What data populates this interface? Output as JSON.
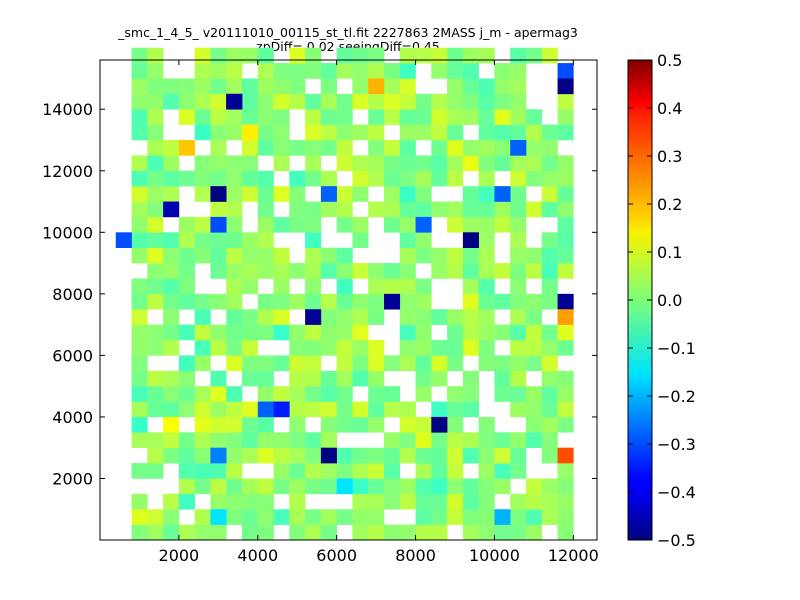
{
  "chart_data": {
    "type": "heatmap",
    "title": "_smc_1_4_5_ v20111010_00115_st_tl.fit 2227863 2MASS j_m - apermag3",
    "subtitle": "zpDiff= 0.02 seeingDiff=0.45",
    "xlabel": "",
    "ylabel": "",
    "xlim": [
      0,
      12600
    ],
    "ylim": [
      0,
      15600
    ],
    "x_ticks": [
      "2000",
      "4000",
      "6000",
      "8000",
      "10000",
      "12000"
    ],
    "y_ticks": [
      "2000",
      "4000",
      "6000",
      "8000",
      "10000",
      "12000",
      "14000"
    ],
    "colorbar": {
      "colormap": "jet",
      "min": -0.5,
      "max": 0.5,
      "ticks": [
        "0.5",
        "0.4",
        "0.3",
        "0.2",
        "0.1",
        "0.0",
        "−0.1",
        "−0.2",
        "−0.3",
        "−0.4",
        "−0.5"
      ]
    },
    "grid": false,
    "cell_width": 400,
    "cell_height": 500,
    "value_fill_density": 0.8,
    "value_seed": 2227863,
    "outlier_cells": [
      {
        "x": 400,
        "y": 9500,
        "value": -0.3
      },
      {
        "x": 3200,
        "y": 14000,
        "value": -0.48
      },
      {
        "x": 6800,
        "y": 14500,
        "value": 0.2
      },
      {
        "x": 11600,
        "y": 15000,
        "value": -0.3
      },
      {
        "x": 11600,
        "y": 14500,
        "value": -0.5
      },
      {
        "x": 10400,
        "y": 12500,
        "value": -0.28
      },
      {
        "x": 2000,
        "y": 12500,
        "value": 0.18
      },
      {
        "x": 2800,
        "y": 11000,
        "value": -0.5
      },
      {
        "x": 1600,
        "y": 10500,
        "value": -0.45
      },
      {
        "x": 2800,
        "y": 10000,
        "value": -0.3
      },
      {
        "x": 5600,
        "y": 11000,
        "value": -0.28
      },
      {
        "x": 10000,
        "y": 11000,
        "value": -0.28
      },
      {
        "x": 8000,
        "y": 10000,
        "value": -0.28
      },
      {
        "x": 9200,
        "y": 9500,
        "value": -0.5
      },
      {
        "x": 3200,
        "y": 14000,
        "value": -0.48
      },
      {
        "x": 7200,
        "y": 7500,
        "value": -0.48
      },
      {
        "x": 5200,
        "y": 7000,
        "value": -0.48
      },
      {
        "x": 11600,
        "y": 7500,
        "value": -0.48
      },
      {
        "x": 11600,
        "y": 7000,
        "value": 0.22
      },
      {
        "x": 4000,
        "y": 4000,
        "value": -0.28
      },
      {
        "x": 4400,
        "y": 4000,
        "value": -0.35
      },
      {
        "x": 8400,
        "y": 3500,
        "value": -0.5
      },
      {
        "x": 5600,
        "y": 2500,
        "value": -0.5
      },
      {
        "x": 11600,
        "y": 2500,
        "value": 0.3
      },
      {
        "x": 2800,
        "y": 2500,
        "value": -0.25
      },
      {
        "x": 6000,
        "y": 1500,
        "value": -0.15
      },
      {
        "x": 2800,
        "y": 500,
        "value": -0.15
      },
      {
        "x": 10000,
        "y": 500,
        "value": -0.2
      },
      {
        "x": 1600,
        "y": 3500,
        "value": 0.12
      },
      {
        "x": 3600,
        "y": 13000,
        "value": 0.14
      }
    ]
  }
}
